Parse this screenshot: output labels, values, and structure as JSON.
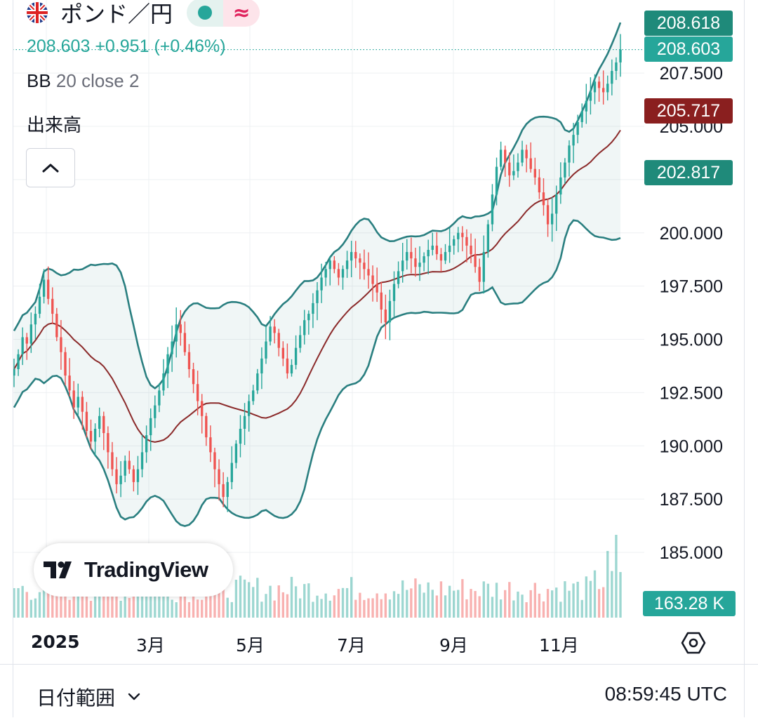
{
  "header": {
    "symbol": "ポンド／円",
    "flag_icon": "uk-japan-flag-icon",
    "status_icons": [
      "market-open-dot-icon",
      "delayed-data-icon"
    ],
    "status_symbol": "≈",
    "price": "208.603",
    "change": "+0.951",
    "change_pct": "(+0.46%)"
  },
  "legend": {
    "bb_label": "BB",
    "bb_params": "20 close 2",
    "volume_label": "出来高"
  },
  "price_tags": {
    "upper": "208.618",
    "last": "208.603",
    "middle": "205.717",
    "lower": "202.817",
    "volume": "163.28 K"
  },
  "logo_text": "TradingView",
  "time_axis": [
    "2025",
    "3月",
    "5月",
    "7月",
    "9月",
    "11月"
  ],
  "footer": {
    "date_range_label": "日付範囲",
    "clock": "08:59:45 UTC"
  },
  "colors": {
    "up": "#26a69a",
    "down": "#ef5350",
    "band": "#2a7f80",
    "basis": "#8b2a2a",
    "middle_tag": "#8a1f1f"
  },
  "chart_data": {
    "type": "candlestick",
    "y_ticks": [
      "207.500",
      "205.000",
      "200.000",
      "197.500",
      "195.000",
      "192.500",
      "190.000",
      "187.500",
      "185.000"
    ],
    "ylim": [
      183.0,
      209.7
    ],
    "x_range": [
      "2025-01",
      "2025-12"
    ],
    "indicators": [
      "Bollinger Bands (20, close, 2)",
      "Volume"
    ],
    "close_series": [
      193.6,
      194.3,
      195.1,
      194.8,
      195.7,
      196.2,
      197.0,
      197.8,
      196.9,
      196.2,
      195.1,
      194.4,
      193.3,
      192.6,
      191.8,
      192.3,
      191.6,
      190.7,
      190.2,
      190.8,
      191.4,
      190.6,
      189.7,
      188.9,
      188.2,
      188.6,
      189.3,
      188.9,
      188.3,
      188.9,
      189.7,
      190.5,
      191.3,
      191.9,
      192.6,
      193.4,
      194.3,
      194.9,
      195.7,
      195.3,
      194.4,
      193.6,
      192.9,
      192.1,
      191.4,
      190.4,
      189.7,
      188.9,
      188.2,
      187.6,
      188.3,
      189.2,
      190.1,
      190.8,
      191.4,
      192.1,
      192.6,
      193.4,
      194.1,
      194.9,
      195.6,
      195.3,
      194.6,
      194.1,
      193.4,
      193.8,
      194.6,
      195.2,
      195.9,
      196.2,
      196.7,
      197.3,
      197.9,
      198.3,
      198.7,
      198.3,
      197.9,
      198.3,
      198.7,
      199.1,
      198.8,
      198.6,
      198.3,
      198.0,
      197.6,
      197.2,
      196.4,
      195.8,
      196.8,
      197.6,
      198.2,
      198.7,
      199.1,
      198.8,
      198.4,
      198.6,
      198.9,
      199.2,
      199.4,
      199.0,
      198.7,
      199.1,
      199.4,
      199.7,
      200.0,
      199.8,
      199.4,
      199.0,
      198.4,
      197.7,
      199.1,
      200.4,
      201.8,
      203.1,
      203.9,
      203.3,
      202.7,
      202.9,
      203.3,
      203.9,
      203.5,
      203.0,
      202.6,
      201.9,
      201.3,
      200.4,
      200.9,
      201.8,
      202.6,
      203.3,
      204.1,
      204.6,
      205.2,
      205.7,
      206.2,
      206.6,
      207.1,
      206.8,
      206.6,
      207.0,
      207.6,
      208.0,
      208.603
    ],
    "bb_upper_last": 208.618,
    "bb_basis_last": 205.717,
    "bb_lower_last": 202.817,
    "volume_last": "163.28 K"
  }
}
